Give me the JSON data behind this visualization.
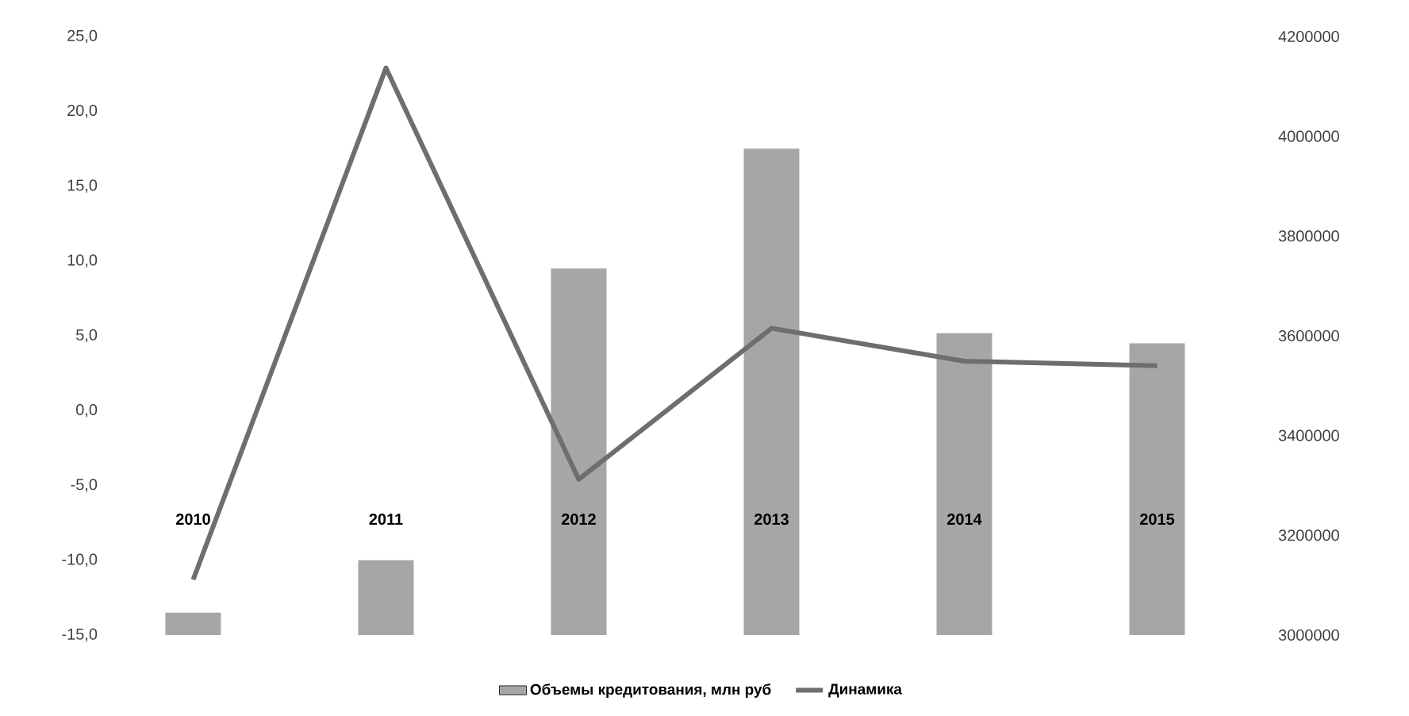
{
  "chart_data": {
    "type": "bar",
    "categories": [
      "2010",
      "2011",
      "2012",
      "2013",
      "2014",
      "2015"
    ],
    "series": [
      {
        "name": "Объемы кредитования, млн руб",
        "axis": "y2",
        "color": "#a6a6a6",
        "values": [
          3045000,
          3150000,
          3735000,
          3975000,
          3605000,
          3585000
        ]
      },
      {
        "name": "Динамика",
        "type": "line",
        "color": "#6e6e6e",
        "values": [
          -11.3,
          22.9,
          -4.6,
          5.5,
          3.3,
          3.0
        ]
      }
    ],
    "ylim": [
      -15,
      25
    ],
    "yticks": [
      {
        "value": -15,
        "label": "-15,0"
      },
      {
        "value": -10,
        "label": "-10,0"
      },
      {
        "value": -5,
        "label": "-5,0"
      },
      {
        "value": 0,
        "label": "0,0"
      },
      {
        "value": 5,
        "label": "5,0"
      },
      {
        "value": 10,
        "label": "10,0"
      },
      {
        "value": 15,
        "label": "15,0"
      },
      {
        "value": 20,
        "label": "20,0"
      },
      {
        "value": 25,
        "label": "25,0"
      }
    ],
    "y2lim": [
      3000000,
      4200000
    ],
    "y2ticks": [
      3000000,
      3200000,
      3400000,
      3600000,
      3800000,
      4000000,
      4200000
    ],
    "legend": "bottom",
    "grid": false
  }
}
